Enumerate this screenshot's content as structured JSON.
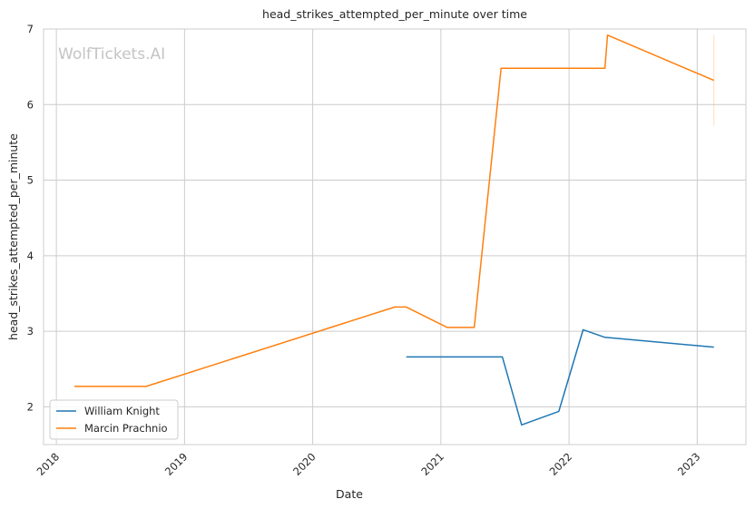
{
  "chart_data": {
    "type": "line",
    "title": "head_strikes_attempted_per_minute over time",
    "xlabel": "Date",
    "ylabel": "head_strikes_attempted_per_minute",
    "watermark": "WolfTickets.AI",
    "xlim": [
      2017.9,
      2023.38
    ],
    "ylim": [
      1.5,
      7.0
    ],
    "xticks": [
      2018,
      2019,
      2020,
      2021,
      2022,
      2023
    ],
    "xtick_labels": [
      "2018",
      "2019",
      "2020",
      "2021",
      "2022",
      "2023"
    ],
    "yticks": [
      2,
      3,
      4,
      5,
      6,
      7
    ],
    "ytick_labels": [
      "2",
      "3",
      "4",
      "5",
      "6",
      "7"
    ],
    "grid": true,
    "legend_position": "lower-left",
    "series": [
      {
        "name": "William Knight",
        "color": "#1f77b4",
        "x": [
          2020.73,
          2021.48,
          2021.63,
          2021.92,
          2022.11,
          2022.28,
          2023.13
        ],
        "y": [
          2.66,
          2.66,
          1.76,
          1.94,
          3.02,
          2.92,
          2.79
        ]
      },
      {
        "name": "Marcin Prachnio",
        "color": "#ff7f0e",
        "x": [
          2018.14,
          2018.7,
          2020.64,
          2020.73,
          2021.05,
          2021.26,
          2021.47,
          2022.28,
          2022.3,
          2023.13
        ],
        "y": [
          2.27,
          2.27,
          3.32,
          3.32,
          3.05,
          3.05,
          6.48,
          6.48,
          6.92,
          6.32
        ]
      }
    ],
    "error_bar": {
      "x": 2023.13,
      "y_low": 5.72,
      "y_high": 6.92,
      "color": "#ff7f0e"
    }
  }
}
